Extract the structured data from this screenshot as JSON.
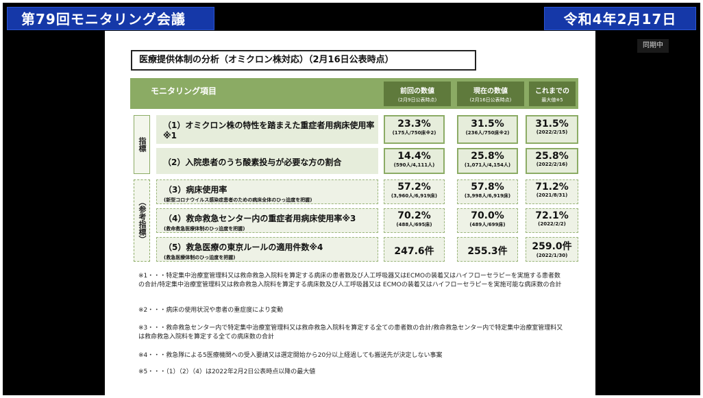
{
  "broadcast": {
    "title": "第79回モニタリング会議",
    "date": "令和4年2月17日",
    "live_label": "同期中"
  },
  "slide": {
    "heading": "医療提供体制の分析（オミクロン株対応）（2月16日公表時点）",
    "header": {
      "item_label": "モニタリング項目",
      "col_prev": "前回の数値",
      "col_prev_sub": "(2月9日公表時点)",
      "col_curr": "現在の数値",
      "col_curr_sub": "(2月16日公表時点)",
      "col_max": "これまでの",
      "col_max2": "最大値※5"
    },
    "groups": {
      "indicator": "指標",
      "reference": "（参考指標）"
    },
    "rows": [
      {
        "label": "（1）オミクロン株の特性を踏まえた重症者用病床使用率※1",
        "sub": "",
        "prev": "23.3%",
        "prev_detail": "(175人/750床※2)",
        "curr": "31.5%",
        "curr_detail": "(236人/750床※2)",
        "max": "31.5%",
        "max_detail": "(2022/2/15)"
      },
      {
        "label": "（2）入院患者のうち酸素投与が必要な方の割合",
        "sub": "",
        "prev": "14.4%",
        "prev_detail": "(590人/4,111人)",
        "curr": "25.8%",
        "curr_detail": "(1,071人/4,154人)",
        "max": "25.8%",
        "max_detail": "(2022/2/16)"
      },
      {
        "label": "（3）病床使用率",
        "sub": "(新型コロナウイルス感染症患者のための病床全体のひっ迫度を把握)",
        "prev": "57.2%",
        "prev_detail": "(3,960人/6,919床)",
        "curr": "57.8%",
        "curr_detail": "(3,998人/6,919床)",
        "max": "71.2%",
        "max_detail": "(2021/8/31)"
      },
      {
        "label": "（4）救命救急センター内の重症者用病床使用率※3",
        "sub": "(救命救急医療体制のひっ迫度を把握)",
        "prev": "70.2%",
        "prev_detail": "(488人/695床)",
        "curr": "70.0%",
        "curr_detail": "(489人/699床)",
        "max": "72.1%",
        "max_detail": "(2022/2/2)"
      },
      {
        "label": "（5）救急医療の東京ルールの適用件数※4",
        "sub": "(救急医療体制のひっ迫度を把握)",
        "prev": "247.6件",
        "prev_detail": "",
        "curr": "255.3件",
        "curr_detail": "",
        "max": "259.0件",
        "max_detail": "(2022/1/30)"
      }
    ],
    "notes": [
      "※1・・・特定集中治療室管理料又は救命救急入院料を算定する病床の患者数及び人工呼吸器又はECMOの装着又はハイフローセラピーを実施する患者数の合計/特定集中治療室管理料又は救命救急入院料を算定する病床数及び人工呼吸器又は ECMOの装着又はハイフローセラピーを実施可能な病床数の合計",
      "※2・・・病床の使用状況や患者の重症度により変動",
      "※3・・・救命救急センター内で特定集中治療室管理料又は救命救急入院料を算定する全ての患者数の合計/救命救急センター内で特定集中治療室管理料又は救命救急入院料を算定する全ての病床数の合計",
      "※4・・・救急隊による5医療機関への受入要請又は選定開始から20分以上経過しても搬送先が決定しない事案",
      "※5・・・（1）（2）（4）は2022年2月2日公表時点以降の最大値"
    ]
  }
}
